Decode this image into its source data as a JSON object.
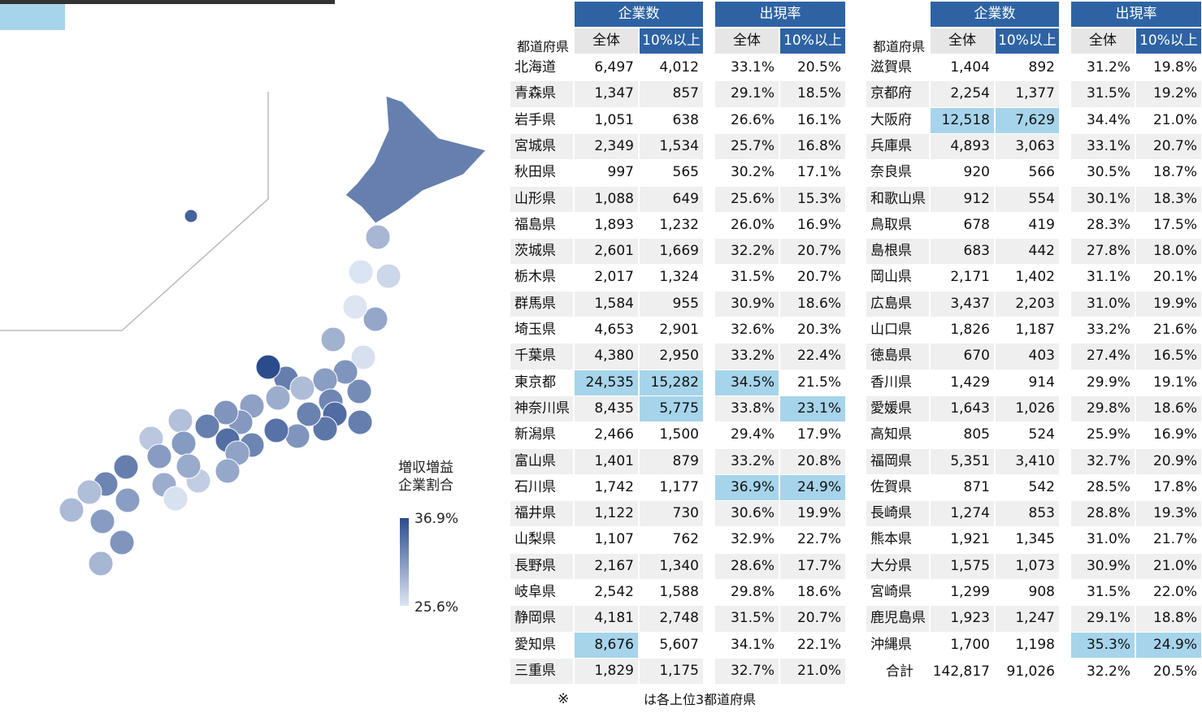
{
  "map": {
    "legend_title": [
      "増収増益",
      "企業割合"
    ],
    "legend_max": {
      "value": 36.9,
      "label": "36.9%"
    },
    "legend_min": {
      "value": 25.6,
      "label": "25.6%"
    }
  },
  "tables": [
    {
      "header_label": "都道府県",
      "group_headers": [
        "企業数",
        "出現率"
      ],
      "sub_headers": [
        "全体",
        "10%以上",
        "全体",
        "10%以上"
      ],
      "rows": [
        [
          "北海道",
          "6,497",
          "4,012",
          "33.1%",
          "20.5%"
        ],
        [
          "青森県",
          "1,347",
          "857",
          "29.1%",
          "18.5%"
        ],
        [
          "岩手県",
          "1,051",
          "638",
          "26.6%",
          "16.1%"
        ],
        [
          "宮城県",
          "2,349",
          "1,534",
          "25.7%",
          "16.8%"
        ],
        [
          "秋田県",
          "997",
          "565",
          "30.2%",
          "17.1%"
        ],
        [
          "山形県",
          "1,088",
          "649",
          "25.6%",
          "15.3%"
        ],
        [
          "福島県",
          "1,893",
          "1,232",
          "26.0%",
          "16.9%"
        ],
        [
          "茨城県",
          "2,601",
          "1,669",
          "32.2%",
          "20.7%"
        ],
        [
          "栃木県",
          "2,017",
          "1,324",
          "31.5%",
          "20.7%"
        ],
        [
          "群馬県",
          "1,584",
          "955",
          "30.9%",
          "18.6%"
        ],
        [
          "埼玉県",
          "4,653",
          "2,901",
          "32.6%",
          "20.3%"
        ],
        [
          "千葉県",
          "4,380",
          "2,950",
          "33.2%",
          "22.4%"
        ],
        [
          "東京都",
          "24,535",
          "15,282",
          "34.5%",
          "21.5%"
        ],
        [
          "神奈川県",
          "8,435",
          "5,775",
          "33.8%",
          "23.1%"
        ],
        [
          "新潟県",
          "2,466",
          "1,500",
          "29.4%",
          "17.9%"
        ],
        [
          "富山県",
          "1,401",
          "879",
          "33.2%",
          "20.8%"
        ],
        [
          "石川県",
          "1,742",
          "1,177",
          "36.9%",
          "24.9%"
        ],
        [
          "福井県",
          "1,122",
          "730",
          "30.6%",
          "19.9%"
        ],
        [
          "山梨県",
          "1,107",
          "762",
          "32.9%",
          "22.7%"
        ],
        [
          "長野県",
          "2,167",
          "1,340",
          "28.6%",
          "17.7%"
        ],
        [
          "岐阜県",
          "2,542",
          "1,588",
          "29.8%",
          "18.6%"
        ],
        [
          "静岡県",
          "4,181",
          "2,748",
          "31.5%",
          "20.7%"
        ],
        [
          "愛知県",
          "8,676",
          "5,607",
          "34.1%",
          "22.1%"
        ],
        [
          "三重県",
          "1,829",
          "1,175",
          "32.7%",
          "21.0%"
        ]
      ],
      "highlight": [
        [
          12,
          1
        ],
        [
          12,
          2
        ],
        [
          12,
          3
        ],
        [
          13,
          2
        ],
        [
          13,
          4
        ],
        [
          16,
          3
        ],
        [
          16,
          4
        ],
        [
          22,
          1
        ]
      ]
    },
    {
      "header_label": "都道府県",
      "group_headers": [
        "企業数",
        "出現率"
      ],
      "sub_headers": [
        "全体",
        "10%以上",
        "全体",
        "10%以上"
      ],
      "rows": [
        [
          "滋賀県",
          "1,404",
          "892",
          "31.2%",
          "19.8%"
        ],
        [
          "京都府",
          "2,254",
          "1,377",
          "31.5%",
          "19.2%"
        ],
        [
          "大阪府",
          "12,518",
          "7,629",
          "34.4%",
          "21.0%"
        ],
        [
          "兵庫県",
          "4,893",
          "3,063",
          "33.1%",
          "20.7%"
        ],
        [
          "奈良県",
          "920",
          "566",
          "30.5%",
          "18.7%"
        ],
        [
          "和歌山県",
          "912",
          "554",
          "30.1%",
          "18.3%"
        ],
        [
          "鳥取県",
          "678",
          "419",
          "28.3%",
          "17.5%"
        ],
        [
          "島根県",
          "683",
          "442",
          "27.8%",
          "18.0%"
        ],
        [
          "岡山県",
          "2,171",
          "1,402",
          "31.1%",
          "20.1%"
        ],
        [
          "広島県",
          "3,437",
          "2,203",
          "31.0%",
          "19.9%"
        ],
        [
          "山口県",
          "1,826",
          "1,187",
          "33.2%",
          "21.6%"
        ],
        [
          "徳島県",
          "670",
          "403",
          "27.4%",
          "16.5%"
        ],
        [
          "香川県",
          "1,429",
          "914",
          "29.9%",
          "19.1%"
        ],
        [
          "愛媛県",
          "1,643",
          "1,026",
          "29.8%",
          "18.6%"
        ],
        [
          "高知県",
          "805",
          "524",
          "25.9%",
          "16.9%"
        ],
        [
          "福岡県",
          "5,351",
          "3,410",
          "32.7%",
          "20.9%"
        ],
        [
          "佐賀県",
          "871",
          "542",
          "28.5%",
          "17.8%"
        ],
        [
          "長崎県",
          "1,274",
          "853",
          "28.8%",
          "19.3%"
        ],
        [
          "熊本県",
          "1,921",
          "1,345",
          "31.0%",
          "21.7%"
        ],
        [
          "大分県",
          "1,575",
          "1,073",
          "30.9%",
          "21.0%"
        ],
        [
          "宮崎県",
          "1,299",
          "908",
          "31.5%",
          "22.0%"
        ],
        [
          "鹿児島県",
          "1,923",
          "1,247",
          "29.1%",
          "18.8%"
        ],
        [
          "沖縄県",
          "1,700",
          "1,198",
          "35.3%",
          "24.9%"
        ]
      ],
      "total_row": [
        "合計",
        "142,817",
        "91,026",
        "32.2%",
        "20.5%"
      ],
      "highlight": [
        [
          2,
          1
        ],
        [
          2,
          2
        ],
        [
          22,
          3
        ],
        [
          22,
          4
        ]
      ]
    }
  ],
  "footnote": {
    "mark": "※",
    "text": "は各上位3都道府県"
  }
}
